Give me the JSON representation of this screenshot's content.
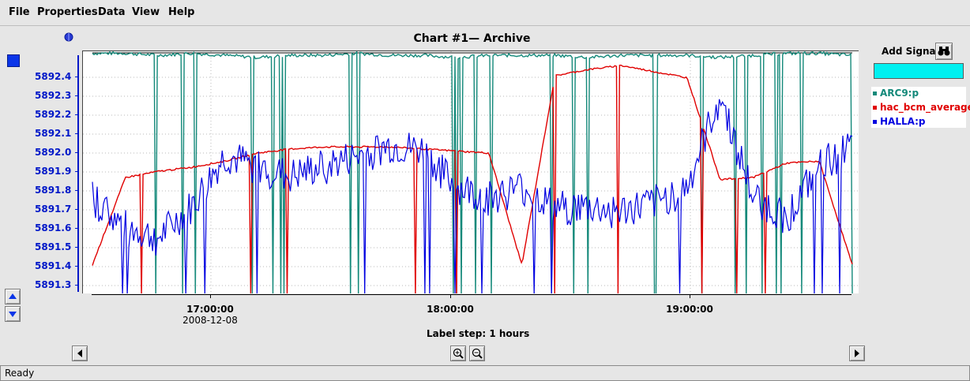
{
  "menu": {
    "file": "File",
    "properties": "Properties",
    "data": "Data",
    "view": "View",
    "help": "Help"
  },
  "chart": {
    "title": "Chart #1— Archive"
  },
  "yaxis": {
    "ticks": [
      "5892.4",
      "5892.3",
      "5892.2",
      "5892.1",
      "5892.0",
      "5891.9",
      "5891.8",
      "5891.7",
      "5891.6",
      "5891.5",
      "5891.4",
      "5891.3"
    ]
  },
  "xaxis": {
    "ticks": [
      {
        "time": "17:00:00",
        "date": "2008-12-08"
      },
      {
        "time": "18:00:00",
        "date": ""
      },
      {
        "time": "19:00:00",
        "date": ""
      }
    ],
    "label_step": "Label step: 1 hours"
  },
  "right_panel": {
    "add_signal": "Add Signal",
    "input_value": ""
  },
  "legend": [
    {
      "name": "ARC9:p",
      "color": "#14897a"
    },
    {
      "name": "hac_bcm_average",
      "color": "#e00000"
    },
    {
      "name": "HALLA:p",
      "color": "#0000e0"
    }
  ],
  "status": "Ready",
  "chart_data": {
    "type": "line",
    "title": "Chart #1— Archive",
    "ylim": [
      5891.28,
      5892.47
    ],
    "x_ticks": [
      "17:00:00",
      "18:00:00",
      "19:00:00"
    ],
    "grid": true,
    "legend_position": "right",
    "series": [
      {
        "name": "ARC9:p",
        "color": "#14897a",
        "values": [
          5892.46,
          5892.46,
          5892.45,
          5892.46,
          5892.45,
          5892.44,
          5892.45,
          5892.45,
          5892.46,
          5892.45,
          5892.45,
          5892.44,
          5892.45,
          5892.45,
          5892.45,
          5892.44,
          5892.45,
          5892.45,
          5892.45,
          5892.44,
          5892.45,
          5892.46,
          5892.46,
          5892.45
        ]
      },
      {
        "name": "hac_bcm_average",
        "color": "#e00000",
        "values": [
          5891.42,
          5891.85,
          5891.88,
          5891.9,
          5891.93,
          5891.97,
          5891.99,
          5892.0,
          5892.0,
          5892.0,
          5891.99,
          5891.98,
          5891.97,
          5891.42,
          5892.35,
          5892.38,
          5892.4,
          5892.37,
          5892.34,
          5891.84,
          5891.85,
          5891.92,
          5891.93,
          5891.42
        ]
      },
      {
        "name": "HALLA:p",
        "color": "#0000e0",
        "values": [
          5891.75,
          5891.6,
          5891.55,
          5891.7,
          5891.95,
          5891.9,
          5891.85,
          5891.9,
          5891.95,
          5892.0,
          5891.98,
          5891.8,
          5891.75,
          5891.8,
          5891.7,
          5891.7,
          5891.68,
          5891.72,
          5891.8,
          5892.25,
          5891.75,
          5891.65,
          5891.9,
          5892.0
        ]
      }
    ]
  }
}
